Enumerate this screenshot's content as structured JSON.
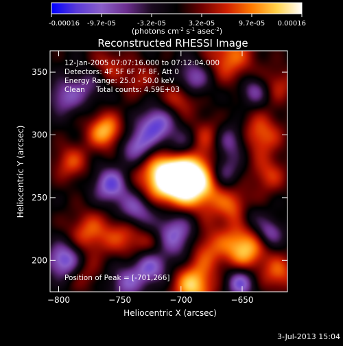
{
  "colorbar": {
    "ticks": [
      "-0.00016",
      "-9.7e-05",
      "-3.2e-05",
      "3.2e-05",
      "9.7e-05",
      "0.00016"
    ],
    "units_main": "(photons cm",
    "units_exp1": "-2",
    "units_mid": " s",
    "units_exp2": "-1",
    "units_tail": " asec",
    "units_exp3": "-2",
    "units_close": ")",
    "colors": [
      "#0000ff",
      "#5a3ad8",
      "#8a5ec8",
      "#6b2e8e",
      "#1a0a1e",
      "#000000",
      "#6e0000",
      "#d02000",
      "#ff7a00",
      "#ffd24a",
      "#ffffff"
    ]
  },
  "info": {
    "line1": "12-Jan-2005 07:07:16.000 to 07:12:04.000",
    "line2": "Detectors: 4F 5F 6F 7F 8F, Att 0",
    "line3": "Energy Range: 25.0 - 50.0 keV",
    "line4_a": "Clean",
    "line4_b": "Total counts: 4.59E+03",
    "peak": "Position of Peak = [-701,266]"
  },
  "footer": {
    "date": "3-Jul-2013 15:04"
  },
  "chart_data": {
    "type": "heatmap",
    "title": "Reconstructed RHESSI Image",
    "xlabel": "Heliocentric X (arcsec)",
    "ylabel": "Heliocentric Y (arcsec)",
    "xlim": [
      -807,
      -613
    ],
    "ylim": [
      175,
      367
    ],
    "xticks": [
      -800,
      -750,
      -700,
      -650
    ],
    "yticks": [
      200,
      250,
      300,
      350
    ],
    "peak_position": [
      -701,
      266
    ],
    "blobs": [
      {
        "x": -701,
        "y": 266,
        "r": 14,
        "v": 1.0
      },
      {
        "x": -681,
        "y": 262,
        "r": 18,
        "v": 0.7
      },
      {
        "x": -718,
        "y": 268,
        "r": 16,
        "v": 0.6
      },
      {
        "x": -762,
        "y": 303,
        "r": 10,
        "v": 0.75
      },
      {
        "x": -660,
        "y": 362,
        "r": 14,
        "v": 0.55
      },
      {
        "x": -635,
        "y": 300,
        "r": 12,
        "v": 0.55
      },
      {
        "x": -628,
        "y": 268,
        "r": 10,
        "v": 0.4
      },
      {
        "x": -648,
        "y": 210,
        "r": 12,
        "v": 0.8
      },
      {
        "x": -690,
        "y": 180,
        "r": 12,
        "v": 0.8
      },
      {
        "x": -680,
        "y": 210,
        "r": 12,
        "v": 0.5
      },
      {
        "x": -620,
        "y": 190,
        "r": 10,
        "v": 0.5
      },
      {
        "x": -790,
        "y": 278,
        "r": 10,
        "v": 0.45
      },
      {
        "x": -775,
        "y": 222,
        "r": 12,
        "v": 0.5
      },
      {
        "x": -745,
        "y": 220,
        "r": 12,
        "v": 0.45
      },
      {
        "x": -722,
        "y": 212,
        "r": 10,
        "v": 0.4
      },
      {
        "x": -700,
        "y": 330,
        "r": 10,
        "v": 0.45
      },
      {
        "x": -678,
        "y": 300,
        "r": 10,
        "v": 0.35
      },
      {
        "x": -760,
        "y": 355,
        "r": 10,
        "v": 0.35
      },
      {
        "x": -735,
        "y": 345,
        "r": 10,
        "v": 0.3
      },
      {
        "x": -654,
        "y": 240,
        "r": 10,
        "v": 0.45
      },
      {
        "x": -620,
        "y": 340,
        "r": 10,
        "v": 0.35
      },
      {
        "x": -780,
        "y": 190,
        "r": 10,
        "v": 0.3
      },
      {
        "x": -735,
        "y": 290,
        "r": 10,
        "v": -0.7
      },
      {
        "x": -720,
        "y": 308,
        "r": 10,
        "v": -0.75
      },
      {
        "x": -700,
        "y": 290,
        "r": 10,
        "v": -0.55
      },
      {
        "x": -757,
        "y": 260,
        "r": 10,
        "v": -0.75
      },
      {
        "x": -665,
        "y": 270,
        "r": 10,
        "v": -0.7
      },
      {
        "x": -737,
        "y": 240,
        "r": 10,
        "v": -0.65
      },
      {
        "x": -705,
        "y": 220,
        "r": 14,
        "v": -0.75
      },
      {
        "x": -725,
        "y": 195,
        "r": 10,
        "v": -0.65
      },
      {
        "x": -795,
        "y": 200,
        "r": 10,
        "v": -0.8
      },
      {
        "x": -795,
        "y": 330,
        "r": 10,
        "v": -0.5
      },
      {
        "x": -690,
        "y": 345,
        "r": 10,
        "v": -0.6
      },
      {
        "x": -640,
        "y": 335,
        "r": 8,
        "v": -0.5
      },
      {
        "x": -660,
        "y": 295,
        "r": 10,
        "v": -0.55
      },
      {
        "x": -645,
        "y": 235,
        "r": 8,
        "v": -0.4
      },
      {
        "x": -628,
        "y": 222,
        "r": 8,
        "v": -0.55
      },
      {
        "x": -745,
        "y": 182,
        "r": 10,
        "v": -0.5
      },
      {
        "x": -652,
        "y": 182,
        "r": 8,
        "v": -0.7
      },
      {
        "x": -775,
        "y": 340,
        "r": 10,
        "v": -0.35
      }
    ]
  }
}
